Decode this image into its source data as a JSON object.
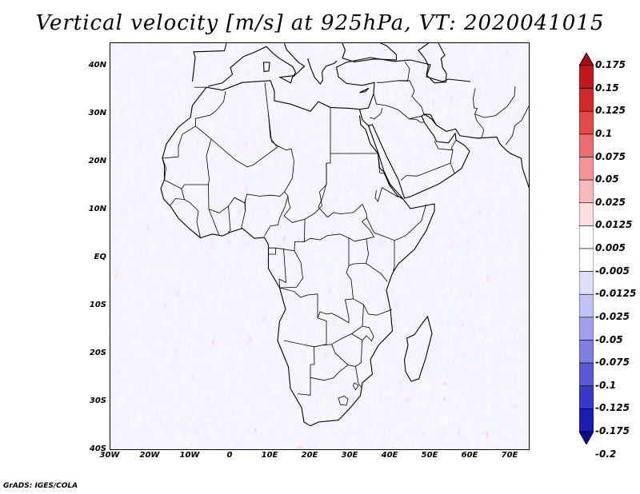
{
  "title": "Vertical velocity [m/s] at 925hPa, VT: 2020041015",
  "footer": "GrADS: IGES/COLA",
  "map": {
    "lon_range": [
      -30,
      75
    ],
    "lat_range": [
      -40,
      45
    ],
    "lat_ticks": [
      {
        "value": 40,
        "label": "40N"
      },
      {
        "value": 30,
        "label": "30N"
      },
      {
        "value": 20,
        "label": "20N"
      },
      {
        "value": 10,
        "label": "10N"
      },
      {
        "value": 0,
        "label": "EQ"
      },
      {
        "value": -10,
        "label": "10S"
      },
      {
        "value": -20,
        "label": "20S"
      },
      {
        "value": -30,
        "label": "30S"
      },
      {
        "value": -40,
        "label": "40S"
      }
    ],
    "lon_ticks": [
      {
        "value": -30,
        "label": "30W"
      },
      {
        "value": -20,
        "label": "20W"
      },
      {
        "value": -10,
        "label": "10W"
      },
      {
        "value": 0,
        "label": "0"
      },
      {
        "value": 10,
        "label": "10E"
      },
      {
        "value": 20,
        "label": "20E"
      },
      {
        "value": 30,
        "label": "30E"
      },
      {
        "value": 40,
        "label": "40E"
      },
      {
        "value": 50,
        "label": "50E"
      },
      {
        "value": 60,
        "label": "60E"
      },
      {
        "value": 70,
        "label": "70E"
      }
    ]
  },
  "colorbar": {
    "labels": [
      "0.175",
      "0.15",
      "0.125",
      "0.1",
      "0.075",
      "0.05",
      "0.025",
      "0.0125",
      "0.005",
      "-0.005",
      "-0.0125",
      "-0.025",
      "-0.05",
      "-0.075",
      "-0.1",
      "-0.125",
      "-0.175",
      "-0.2"
    ],
    "colors": [
      "#a50f15",
      "#c0171e",
      "#d42a2a",
      "#e24a4a",
      "#ec6e6e",
      "#f39595",
      "#f8baba",
      "#fcdede",
      "#ffffff",
      "#ffffff",
      "#dedefc",
      "#c2c2f6",
      "#a0a0ee",
      "#7e7ee4",
      "#5a5ad8",
      "#3838c8",
      "#1c1cb0",
      "#0a0a8c"
    ]
  }
}
